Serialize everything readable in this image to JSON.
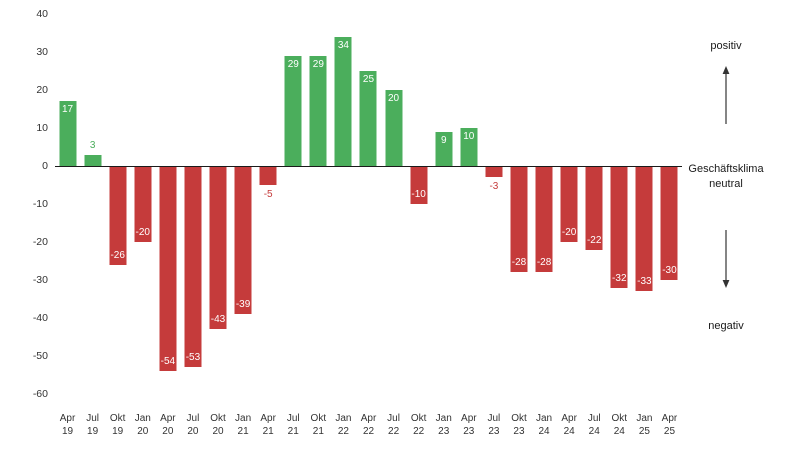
{
  "chart_data": {
    "type": "bar",
    "title": "",
    "categories": [
      "Apr 19",
      "Jul 19",
      "Okt 19",
      "Jan 20",
      "Apr 20",
      "Jul 20",
      "Okt 20",
      "Jan 21",
      "Apr 21",
      "Jul 21",
      "Okt 21",
      "Jan 22",
      "Apr 22",
      "Jul 22",
      "Okt 22",
      "Jan 23",
      "Apr 23",
      "Jul 23",
      "Okt 23",
      "Jan 24",
      "Apr 24",
      "Jul 24",
      "Okt 24",
      "Jan 25",
      "Apr 25"
    ],
    "values": [
      17,
      3,
      -26,
      -20,
      -54,
      -53,
      -43,
      -39,
      -5,
      29,
      29,
      34,
      25,
      20,
      -10,
      9,
      10,
      -3,
      -28,
      -28,
      -20,
      -22,
      -32,
      -33,
      -30
    ],
    "ylim": [
      -60,
      40
    ],
    "yticks": [
      40,
      30,
      20,
      10,
      0,
      -10,
      -20,
      -30,
      -40,
      -50,
      -60
    ],
    "grid": false,
    "legend": false,
    "colors": {
      "positive": "#4bae5c",
      "negative": "#c53b3b"
    },
    "annotations": {
      "positive": "positiv",
      "neutral_line1": "Geschäftsklima",
      "neutral_line2": "neutral",
      "negative": "negativ"
    }
  }
}
